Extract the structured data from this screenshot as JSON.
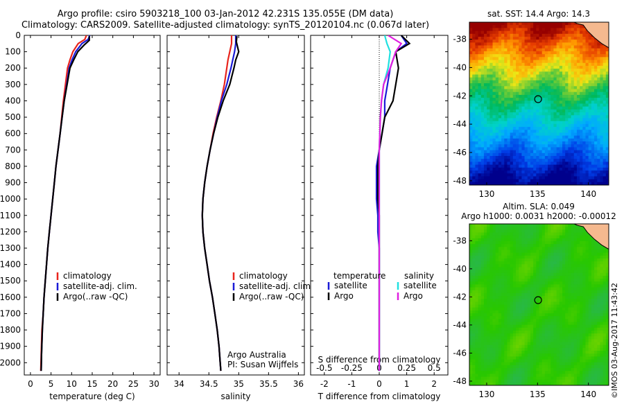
{
  "header": {
    "line1": "Argo profile: csiro 5903218_100 03-Jan-2012 42.231S 135.055E (DM data)",
    "line2": "Climatology: CARS2009. Satellite-adjusted climatology: synTS_20120104.nc (0.067d later)"
  },
  "watermark": "©IMOS 03-Aug-2017 11:43:42",
  "colors": {
    "climatology": "#e8241c",
    "satellite": "#1a1ad6",
    "argo": "#000000",
    "argo_salinity": "#e020e0",
    "satellite_salinity": "#20e0e0"
  },
  "chart_data": [
    {
      "type": "line",
      "xlabel": "temperature (deg C)",
      "ylabel": "",
      "xlim": [
        -1.5,
        31.5
      ],
      "ylim": [
        2075,
        0
      ],
      "xticks": [
        0,
        5,
        10,
        15,
        20,
        25,
        30
      ],
      "yticks": [
        0,
        100,
        200,
        300,
        400,
        500,
        600,
        700,
        800,
        900,
        1000,
        1100,
        1200,
        1300,
        1400,
        1500,
        1600,
        1700,
        1800,
        1900,
        2000
      ],
      "legend": [
        "climatology",
        "satellite-adj. clim.",
        "Argo(..raw -QC)"
      ],
      "legend_position": "middle-left",
      "series": [
        {
          "name": "climatology",
          "color": "#e8241c",
          "x": [
            13.6,
            13.2,
            11.6,
            10.3,
            9.6,
            9.0,
            8.5,
            8.0,
            7.6,
            7.2,
            6.7,
            6.2,
            5.8,
            5.4,
            5.0,
            4.6,
            4.2,
            3.9,
            3.6,
            3.3,
            3.1,
            2.8,
            2.6,
            2.5
          ],
          "y": [
            0,
            25,
            50,
            100,
            150,
            200,
            300,
            400,
            500,
            600,
            700,
            800,
            900,
            1000,
            1100,
            1200,
            1300,
            1400,
            1500,
            1600,
            1700,
            1800,
            1950,
            2050
          ]
        },
        {
          "name": "satellite-adj. clim.",
          "color": "#1a1ad6",
          "x": [
            14.4,
            14.0,
            12.5,
            11.0,
            10.1,
            9.4,
            8.8,
            8.2,
            7.7,
            7.2,
            6.7,
            6.2,
            5.8,
            5.4,
            5.0,
            4.6,
            4.2,
            3.9,
            3.6,
            3.3,
            3.1,
            2.9,
            2.7,
            2.6
          ],
          "y": [
            0,
            25,
            50,
            100,
            150,
            200,
            300,
            400,
            500,
            600,
            700,
            800,
            900,
            1000,
            1100,
            1200,
            1300,
            1400,
            1500,
            1600,
            1700,
            1800,
            1950,
            2050
          ]
        },
        {
          "name": "Argo(..raw -QC)",
          "color": "#000000",
          "x": [
            14.3,
            14.3,
            13.0,
            11.5,
            10.5,
            9.6,
            8.9,
            8.2,
            7.7,
            7.2,
            6.7,
            6.2,
            5.8,
            5.4,
            5.0,
            4.6,
            4.2,
            3.9,
            3.6,
            3.3,
            3.1,
            2.9,
            2.7,
            2.6
          ],
          "y": [
            5,
            30,
            60,
            100,
            150,
            200,
            300,
            400,
            500,
            600,
            700,
            800,
            900,
            1000,
            1100,
            1200,
            1300,
            1400,
            1500,
            1600,
            1700,
            1800,
            1950,
            2050
          ]
        }
      ]
    },
    {
      "type": "line",
      "xlabel": "salinity",
      "ylabel": "",
      "xlim": [
        33.8,
        36.1
      ],
      "ylim": [
        2075,
        0
      ],
      "xticks": [
        34,
        34.5,
        35,
        35.5,
        36
      ],
      "legend": [
        "climatology",
        "satellite-adj. clim.",
        "Argo(..raw -QC)"
      ],
      "legend_position": "middle-right",
      "annotation_lines": [
        "Argo Australia",
        "PI: Susan Wijffels"
      ],
      "series": [
        {
          "name": "climatology",
          "color": "#e8241c",
          "x": [
            34.88,
            34.88,
            34.85,
            34.82,
            34.8,
            34.76,
            34.7,
            34.63,
            34.57,
            34.52,
            34.47,
            34.43,
            34.4,
            34.39,
            34.4,
            34.43,
            34.47,
            34.51,
            34.56,
            34.6,
            34.64,
            34.67,
            34.69,
            34.7
          ],
          "y": [
            0,
            50,
            100,
            150,
            200,
            300,
            400,
            500,
            600,
            700,
            800,
            900,
            1000,
            1100,
            1200,
            1300,
            1400,
            1500,
            1600,
            1700,
            1800,
            1900,
            2000,
            2050
          ]
        },
        {
          "name": "satellite-adj. clim.",
          "color": "#1a1ad6",
          "x": [
            34.95,
            34.95,
            34.93,
            34.9,
            34.87,
            34.8,
            34.71,
            34.64,
            34.58,
            34.52,
            34.47,
            34.43,
            34.4,
            34.39,
            34.4,
            34.43,
            34.47,
            34.51,
            34.56,
            34.6,
            34.64,
            34.67,
            34.69,
            34.7
          ],
          "y": [
            0,
            50,
            100,
            150,
            200,
            300,
            400,
            500,
            600,
            700,
            800,
            900,
            1000,
            1100,
            1200,
            1300,
            1400,
            1500,
            1600,
            1700,
            1800,
            1900,
            2000,
            2050
          ]
        },
        {
          "name": "Argo(..raw -QC)",
          "color": "#000000",
          "x": [
            34.97,
            34.96,
            35.0,
            34.95,
            34.92,
            34.85,
            34.74,
            34.65,
            34.58,
            34.52,
            34.47,
            34.43,
            34.4,
            34.39,
            34.4,
            34.43,
            34.47,
            34.51,
            34.56,
            34.6,
            34.64,
            34.67,
            34.69,
            34.7
          ],
          "y": [
            5,
            40,
            100,
            150,
            200,
            300,
            400,
            500,
            600,
            700,
            800,
            900,
            1000,
            1100,
            1200,
            1300,
            1400,
            1500,
            1600,
            1700,
            1800,
            1900,
            2000,
            2050
          ]
        }
      ]
    },
    {
      "type": "line",
      "xlabel": "T difference from climatology",
      "x2label": "S difference from climatology",
      "xlim": [
        -2.5,
        2.5
      ],
      "x2lim": [
        -0.625,
        0.625
      ],
      "ylim": [
        2075,
        0
      ],
      "xticks": [
        -2,
        -1,
        0,
        1,
        2
      ],
      "x2ticks": [
        -0.5,
        -0.25,
        0,
        0.25,
        0.5
      ],
      "legend_temperature": {
        "title": "temperature",
        "entries": [
          "satellite",
          "Argo"
        ]
      },
      "legend_salinity": {
        "title": "salinity",
        "entries": [
          "satellite",
          "Argo"
        ]
      },
      "series": [
        {
          "name": "satellite",
          "group": "temperature",
          "color": "#1a1ad6",
          "x": [
            0.8,
            1.0,
            0.6,
            0.4,
            0.3,
            0.2,
            0.2,
            0.1,
            0.0,
            -0.1,
            -0.1,
            -0.1,
            -0.05,
            -0.05,
            0,
            0,
            0,
            0,
            0,
            0
          ],
          "y": [
            0,
            50,
            100,
            200,
            300,
            400,
            500,
            600,
            700,
            800,
            900,
            1000,
            1100,
            1200,
            1300,
            1400,
            1500,
            1700,
            1900,
            2050
          ]
        },
        {
          "name": "Argo",
          "group": "temperature",
          "color": "#000000",
          "x": [
            0.8,
            1.1,
            0.6,
            0.7,
            0.6,
            0.5,
            0.2,
            0.1,
            0.0,
            -0.05,
            -0.05,
            -0.05,
            0,
            0,
            0,
            0,
            0,
            0,
            0,
            0
          ],
          "y": [
            0,
            50,
            100,
            200,
            300,
            400,
            500,
            600,
            700,
            800,
            900,
            1000,
            1100,
            1200,
            1300,
            1400,
            1500,
            1700,
            1900,
            2050
          ]
        },
        {
          "name": "satellite",
          "group": "salinity",
          "color": "#20e0e0",
          "x": [
            0.05,
            0.07,
            0.1,
            0.08,
            0.04,
            0.02,
            0.01,
            0,
            0,
            0,
            0,
            0,
            0,
            0,
            0,
            0
          ],
          "y": [
            0,
            50,
            100,
            200,
            300,
            400,
            500,
            700,
            800,
            1000,
            1200,
            1400,
            1600,
            1800,
            1950,
            2050
          ]
        },
        {
          "name": "Argo",
          "group": "salinity",
          "color": "#e020e0",
          "x": [
            0.08,
            0.2,
            0.15,
            0.1,
            0.04,
            0.02,
            0.01,
            0,
            0,
            0,
            0,
            0,
            0,
            0,
            0,
            0
          ],
          "y": [
            0,
            50,
            100,
            200,
            300,
            400,
            500,
            700,
            800,
            1000,
            1200,
            1400,
            1600,
            1800,
            1950,
            2050
          ]
        }
      ]
    },
    {
      "type": "heatmap",
      "title": "sat. SST: 14.4  Argo: 14.3",
      "xlim": [
        128.3,
        142
      ],
      "ylim": [
        -48.3,
        -36.8
      ],
      "xticks": [
        130,
        135,
        140
      ],
      "yticks": [
        -38,
        -40,
        -42,
        -44,
        -46,
        -48
      ],
      "marker": {
        "lon": 135.055,
        "lat": -42.231
      }
    },
    {
      "type": "heatmap",
      "title": "Altim. SLA: 0.049",
      "subtitle": "Argo h1000: 0.0031  h2000: -0.00012",
      "xlim": [
        128.3,
        142
      ],
      "ylim": [
        -48.3,
        -36.8
      ],
      "xticks": [
        130,
        135,
        140
      ],
      "yticks": [
        -38,
        -40,
        -42,
        -44,
        -46,
        -48
      ],
      "marker": {
        "lon": 135.055,
        "lat": -42.231
      }
    }
  ]
}
